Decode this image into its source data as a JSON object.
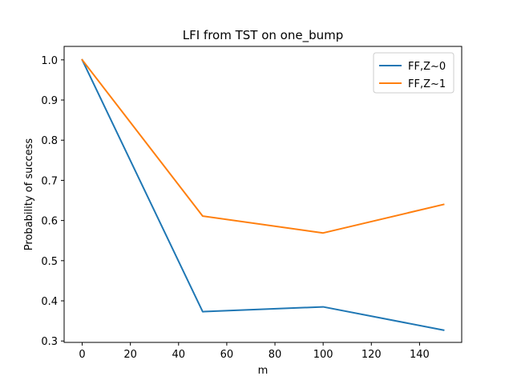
{
  "chart_data": {
    "type": "line",
    "title": "LFI from TST on one_bump",
    "xlabel": "m",
    "ylabel": "Probability of success",
    "x": [
      0,
      50,
      100,
      150
    ],
    "xlim": [
      -7.5,
      157.5
    ],
    "ylim": [
      0.2965,
      1.0335
    ],
    "xticks": [
      0,
      20,
      40,
      60,
      80,
      100,
      120,
      140
    ],
    "yticks": [
      0.3,
      0.4,
      0.5,
      0.6,
      0.7,
      0.8,
      0.9,
      1.0
    ],
    "ytick_labels": [
      "0.3",
      "0.4",
      "0.5",
      "0.6",
      "0.7",
      "0.8",
      "0.9",
      "1.0"
    ],
    "grid": false,
    "legend_position": "upper right",
    "series": [
      {
        "name": "FF,Z~0",
        "color": "#1f77b4",
        "values": [
          1.0,
          0.373,
          0.385,
          0.327
        ]
      },
      {
        "name": "FF,Z~1",
        "color": "#ff7f0e",
        "values": [
          1.0,
          0.611,
          0.569,
          0.64
        ]
      }
    ]
  }
}
